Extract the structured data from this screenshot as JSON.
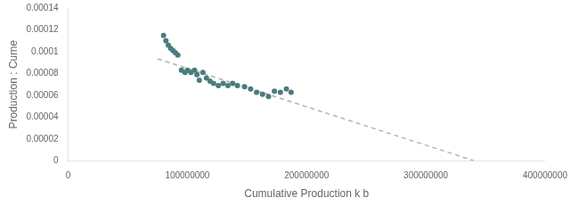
{
  "chart_data": {
    "type": "scatter",
    "xlabel": "Cumulative Production k b",
    "ylabel": "Production : Cume",
    "xlim": [
      0,
      400000000
    ],
    "ylim": [
      0,
      0.00014
    ],
    "xticks": [
      0,
      100000000,
      200000000,
      300000000,
      400000000
    ],
    "yticks": [
      0,
      2e-05,
      4e-05,
      6e-05,
      8e-05,
      0.0001,
      0.00012,
      0.00014
    ],
    "grid": false,
    "series": [
      {
        "type": "scatter",
        "color": "#4a7c7e",
        "x": [
          80000000,
          82000000,
          84000000,
          86000000,
          88000000,
          90000000,
          92000000,
          95000000,
          98000000,
          100000000,
          103000000,
          106000000,
          108000000,
          110000000,
          113000000,
          116000000,
          119000000,
          122000000,
          126000000,
          130000000,
          134000000,
          138000000,
          142000000,
          148000000,
          153000000,
          158000000,
          163000000,
          168000000,
          173000000,
          178000000,
          183000000,
          187000000
        ],
        "values": [
          0.000115,
          0.00011,
          0.000106,
          0.000103,
          0.000101,
          9.9e-05,
          9.7e-05,
          8.3e-05,
          8.1e-05,
          8.3e-05,
          8.1e-05,
          8.3e-05,
          7.9e-05,
          7.4e-05,
          8.1e-05,
          7.6e-05,
          7.3e-05,
          7.1e-05,
          6.9e-05,
          7.1e-05,
          6.9e-05,
          7.1e-05,
          6.9e-05,
          6.8e-05,
          6.6e-05,
          6.3e-05,
          6.1e-05,
          5.9e-05,
          6.4e-05,
          6.3e-05,
          6.6e-05,
          6.3e-05
        ]
      },
      {
        "type": "line",
        "color": "#b0b0b0",
        "line_style": "dashed",
        "x": [
          75000000,
          340000000
        ],
        "values": [
          9.35e-05,
          5e-07
        ]
      }
    ]
  }
}
